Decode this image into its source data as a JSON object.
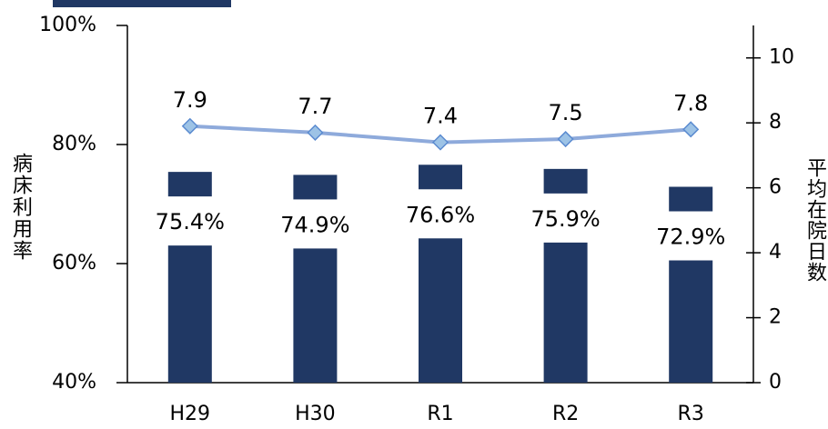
{
  "chart_data": {
    "type": "bar-line",
    "categories": [
      "H29",
      "H30",
      "R1",
      "R2",
      "R3"
    ],
    "series": [
      {
        "type": "bar",
        "color": "#203864",
        "values": [
          75.4,
          74.9,
          76.6,
          75.9,
          72.9
        ],
        "value_labels": [
          "75.4%",
          "74.9%",
          "76.6%",
          "75.9%",
          "72.9%"
        ]
      },
      {
        "type": "line",
        "axis": "y2",
        "color": "#8eaadb",
        "values": [
          7.9,
          7.7,
          7.4,
          7.5,
          7.8
        ]
      }
    ],
    "ylabel": "病床利用率",
    "y2label": "平均在院日数",
    "ylim": [
      40,
      100
    ],
    "yticks": [
      {
        "value": 40,
        "label": "40%"
      },
      {
        "value": 60,
        "label": "60%"
      },
      {
        "value": 80,
        "label": "80%"
      },
      {
        "value": 100,
        "label": "100%"
      }
    ],
    "y2lim": [
      0,
      11
    ],
    "y2ticks": [
      0,
      2,
      4,
      6,
      8,
      10
    ]
  }
}
